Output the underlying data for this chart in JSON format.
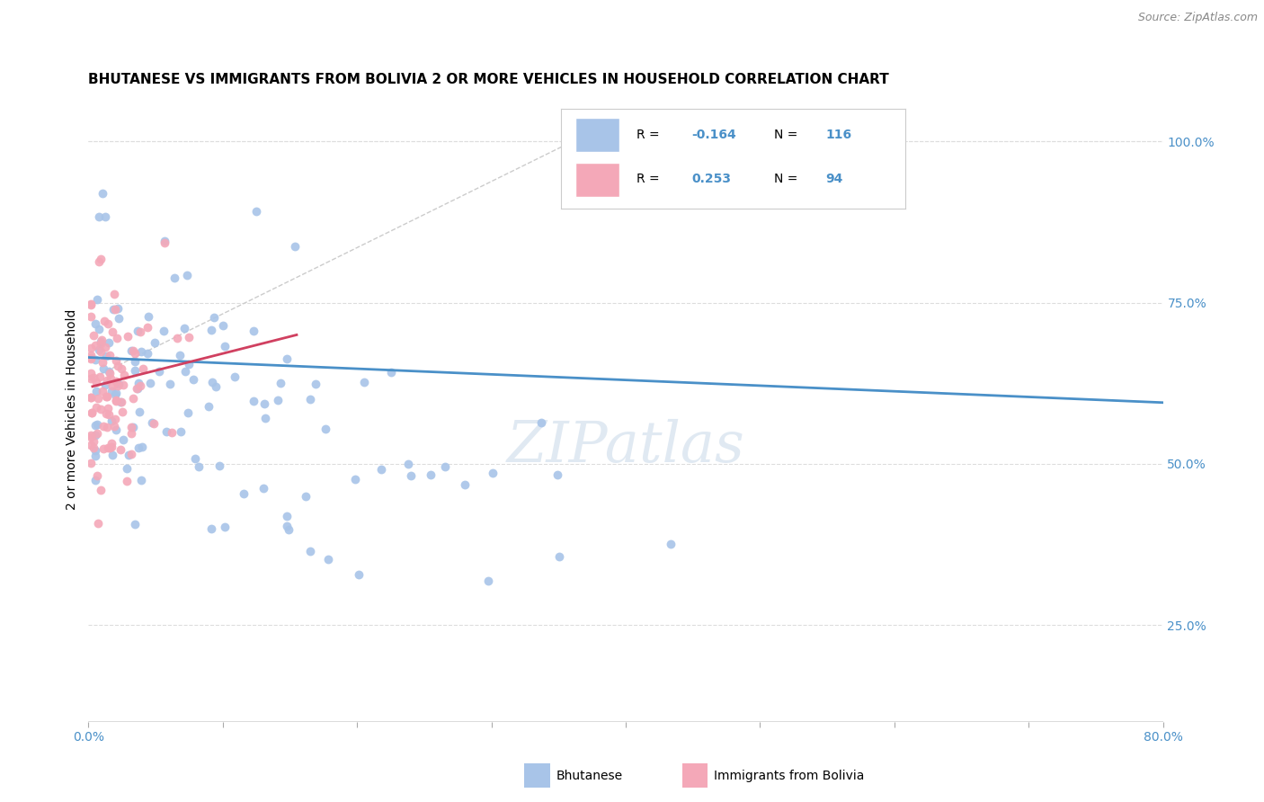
{
  "title": "BHUTANESE VS IMMIGRANTS FROM BOLIVIA 2 OR MORE VEHICLES IN HOUSEHOLD CORRELATION CHART",
  "source": "Source: ZipAtlas.com",
  "ylabel": "2 or more Vehicles in Household",
  "blue_color": "#a8c4e8",
  "pink_color": "#f4a8b8",
  "trend_blue_color": "#4a90c8",
  "trend_pink_color": "#d04060",
  "diagonal_color": "#cccccc",
  "watermark": "ZIPatlas",
  "legend_r_blue": "-0.164",
  "legend_n_blue": "116",
  "legend_r_pink": "0.253",
  "legend_n_pink": "94",
  "title_fontsize": 11,
  "source_fontsize": 9,
  "label_fontsize": 10,
  "tick_fontsize": 10,
  "xmin": 0.0,
  "xmax": 0.8,
  "ymin": 0.1,
  "ymax": 1.07
}
